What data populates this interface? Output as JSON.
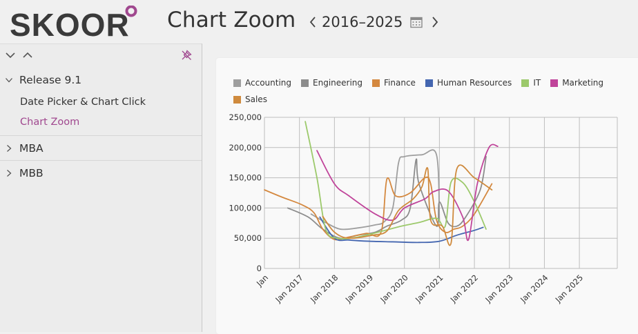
{
  "header": {
    "logo_text": "SKOOR",
    "title": "Chart Zoom",
    "range": "2016–2025"
  },
  "sidebar": {
    "groups": [
      {
        "label": "Release 9.1",
        "expanded": true,
        "items": [
          {
            "label": "Date Picker & Chart Click",
            "active": false
          },
          {
            "label": "Chart Zoom",
            "active": true
          }
        ]
      },
      {
        "label": "MBA",
        "expanded": false
      },
      {
        "label": "MBB",
        "expanded": false
      }
    ]
  },
  "colors": {
    "accent": "#a0488f",
    "grid": "#bdbdbd"
  },
  "chart_data": {
    "type": "line",
    "legend_placement": "top-left",
    "grid": true,
    "ylim": [
      0,
      250000
    ],
    "yticks": [
      "0",
      "50,000",
      "100,000",
      "150,000",
      "200,000",
      "250,000"
    ],
    "xlim": [
      "2016-01",
      "2026-02"
    ],
    "xticks": [
      "Jan",
      "Jan 2017",
      "Jan 2018",
      "Jan 2019",
      "Jan 2020",
      "Jan 2021",
      "Jan 2022",
      "Jan 2023",
      "Jan 2024",
      "Jan 2025"
    ],
    "series": [
      {
        "name": "Accounting",
        "color": "#9e9e9e",
        "points": [
          [
            "2017-05",
            90000
          ],
          [
            "2017-10",
            76000
          ],
          [
            "2018-03",
            65000
          ],
          [
            "2018-09",
            67000
          ],
          [
            "2019-03",
            72000
          ],
          [
            "2019-06",
            77000
          ],
          [
            "2019-09",
            100000
          ],
          [
            "2019-11",
            175000
          ],
          [
            "2020-01",
            185000
          ],
          [
            "2020-07",
            188000
          ],
          [
            "2020-12",
            188000
          ],
          [
            "2021-01",
            80000
          ]
        ]
      },
      {
        "name": "Engineering",
        "color": "#8c8c8c",
        "points": [
          [
            "2016-09",
            100000
          ],
          [
            "2017-04",
            85000
          ],
          [
            "2017-09",
            65000
          ],
          [
            "2018-03",
            50000
          ],
          [
            "2018-09",
            55000
          ],
          [
            "2019-03",
            60000
          ],
          [
            "2019-07",
            70000
          ],
          [
            "2019-12",
            80000
          ],
          [
            "2020-03",
            100000
          ],
          [
            "2020-05",
            180000
          ],
          [
            "2020-06",
            140000
          ],
          [
            "2020-12",
            70000
          ],
          [
            "2021-01",
            110000
          ],
          [
            "2021-04",
            75000
          ],
          [
            "2021-07",
            70000
          ],
          [
            "2021-10",
            85000
          ],
          [
            "2022-03",
            130000
          ],
          [
            "2022-05",
            185000
          ]
        ]
      },
      {
        "name": "Finance",
        "color": "#d4883f",
        "points": [
          [
            "2016-01",
            130000
          ],
          [
            "2016-07",
            118000
          ],
          [
            "2017-02",
            105000
          ],
          [
            "2017-06",
            92000
          ],
          [
            "2017-09",
            65000
          ],
          [
            "2018-01",
            48000
          ],
          [
            "2018-06",
            52000
          ],
          [
            "2018-12",
            58000
          ],
          [
            "2019-05",
            60000
          ],
          [
            "2019-07",
            148000
          ],
          [
            "2019-10",
            120000
          ],
          [
            "2020-03",
            125000
          ],
          [
            "2020-08",
            150000
          ],
          [
            "2020-10",
            140000
          ],
          [
            "2020-12",
            80000
          ],
          [
            "2021-03",
            60000
          ],
          [
            "2021-06",
            65000
          ],
          [
            "2021-09",
            70000
          ],
          [
            "2022-01",
            90000
          ],
          [
            "2022-07",
            140000
          ]
        ]
      },
      {
        "name": "Human Resources",
        "color": "#4466b0",
        "points": [
          [
            "2017-08",
            85000
          ],
          [
            "2018-01",
            50000
          ],
          [
            "2018-06",
            47000
          ],
          [
            "2019-01",
            45000
          ],
          [
            "2019-09",
            44000
          ],
          [
            "2020-06",
            43000
          ],
          [
            "2021-01",
            45000
          ],
          [
            "2021-07",
            55000
          ],
          [
            "2022-01",
            63000
          ],
          [
            "2022-04",
            68000
          ]
        ]
      },
      {
        "name": "IT",
        "color": "#9cc96b",
        "points": [
          [
            "2017-03",
            243000
          ],
          [
            "2017-07",
            150000
          ],
          [
            "2017-10",
            65000
          ],
          [
            "2018-02",
            50000
          ],
          [
            "2018-08",
            51000
          ],
          [
            "2019-04",
            60000
          ],
          [
            "2019-12",
            70000
          ],
          [
            "2020-06",
            76000
          ],
          [
            "2020-12",
            83000
          ],
          [
            "2021-03",
            70000
          ],
          [
            "2021-05",
            143000
          ],
          [
            "2021-09",
            142000
          ],
          [
            "2022-01",
            110000
          ],
          [
            "2022-05",
            65000
          ]
        ]
      },
      {
        "name": "Marketing",
        "color": "#c0449a",
        "points": [
          [
            "2017-07",
            195000
          ],
          [
            "2018-01",
            140000
          ],
          [
            "2018-06",
            120000
          ],
          [
            "2019-03",
            90000
          ],
          [
            "2019-09",
            80000
          ],
          [
            "2020-01",
            100000
          ],
          [
            "2020-08",
            115000
          ],
          [
            "2020-11",
            127000
          ],
          [
            "2021-04",
            128000
          ],
          [
            "2021-09",
            85000
          ],
          [
            "2021-11",
            48000
          ],
          [
            "2022-02",
            140000
          ],
          [
            "2022-06",
            200000
          ],
          [
            "2022-09",
            202000
          ]
        ]
      },
      {
        "name": "Sales",
        "color": "#cf8a3d",
        "points": [
          [
            "2017-09",
            86000
          ],
          [
            "2018-01",
            60000
          ],
          [
            "2018-06",
            50000
          ],
          [
            "2019-02",
            55000
          ],
          [
            "2019-07",
            62000
          ],
          [
            "2019-11",
            96000
          ],
          [
            "2020-04",
            115000
          ],
          [
            "2020-07",
            135000
          ],
          [
            "2020-09",
            165000
          ],
          [
            "2020-10",
            80000
          ],
          [
            "2021-02",
            70000
          ],
          [
            "2021-05",
            42000
          ],
          [
            "2021-07",
            165000
          ],
          [
            "2022-01",
            150000
          ],
          [
            "2022-07",
            130000
          ]
        ]
      }
    ]
  }
}
